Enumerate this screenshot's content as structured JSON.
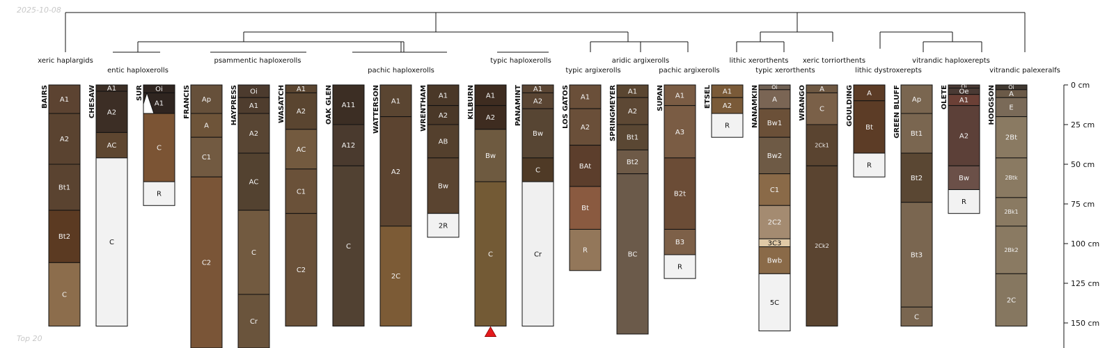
{
  "header": {
    "date": "2025-10-08"
  },
  "footer": {
    "caption": "Top 20"
  },
  "chart_data": {
    "type": "soil-profile-sketch",
    "depth_axis": {
      "unit": "cm",
      "ticks": [
        0,
        25,
        50,
        75,
        100,
        125,
        150
      ],
      "tick_labels": [
        "0 cm",
        "25 cm",
        "50 cm",
        "75 cm",
        "100 cm",
        "125 cm",
        "150 cm"
      ],
      "range": [
        0,
        160
      ]
    },
    "dendrogram_tips": [
      "xeric haplargids",
      "entic haploxerolls",
      "psammentic haploxerolls",
      "pachic haploxerolls",
      "typic haploxerolls",
      "typic argixerolls",
      "aridic argixerolls",
      "pachic argixerolls",
      "lithic xerorthents",
      "typic xerorthents",
      "xeric torriorthents",
      "lithic dystroxerepts",
      "vitrandic haploxerepts",
      "vitrandic palexeralfs"
    ],
    "profiles": [
      {
        "name": "BAIRS",
        "horizons": [
          {
            "name": "A1",
            "top": 0,
            "bottom": 18,
            "color": "#5c4331"
          },
          {
            "name": "A2",
            "top": 18,
            "bottom": 50,
            "color": "#5a4330"
          },
          {
            "name": "Bt1",
            "top": 50,
            "bottom": 79,
            "color": "#5a4330"
          },
          {
            "name": "Bt2",
            "top": 79,
            "bottom": 112,
            "color": "#5b3a22"
          },
          {
            "name": "C",
            "top": 112,
            "bottom": 152,
            "color": "#8c6d4c"
          }
        ]
      },
      {
        "name": "CHESAW",
        "horizons": [
          {
            "name": "A1",
            "top": 0,
            "bottom": 4,
            "color": "#3c2e25"
          },
          {
            "name": "A2",
            "top": 4,
            "bottom": 30,
            "color": "#3c2e25"
          },
          {
            "name": "AC",
            "top": 30,
            "bottom": 46,
            "color": "#5e4630"
          },
          {
            "name": "C",
            "top": 46,
            "bottom": 152,
            "color": "#f2f2f2"
          }
        ]
      },
      {
        "name": "SUR",
        "horizons": [
          {
            "name": "Oi",
            "top": 0,
            "bottom": 5,
            "color": "#2f2520"
          },
          {
            "name": "A1",
            "top": 5,
            "bottom": 18,
            "color": "#2f2520"
          },
          {
            "name": "C",
            "top": 18,
            "bottom": 61,
            "color": "#7b5434"
          },
          {
            "name": "R",
            "top": 61,
            "bottom": 76,
            "color": "#f2f2f2"
          }
        ]
      },
      {
        "name": "FRANCIS",
        "horizons": [
          {
            "name": "Ap",
            "top": 0,
            "bottom": 18,
            "color": "#66503a"
          },
          {
            "name": "A",
            "top": 18,
            "bottom": 33,
            "color": "#6e5439"
          },
          {
            "name": "C1",
            "top": 33,
            "bottom": 58,
            "color": "#725a41"
          },
          {
            "name": "C2",
            "top": 58,
            "bottom": 170,
            "color": "#7a5537"
          }
        ]
      },
      {
        "name": "HAYPRESS",
        "horizons": [
          {
            "name": "Oi",
            "top": 0,
            "bottom": 8,
            "color": "#4c3b2e"
          },
          {
            "name": "A1",
            "top": 8,
            "bottom": 18,
            "color": "#4f3d2e"
          },
          {
            "name": "A2",
            "top": 18,
            "bottom": 43,
            "color": "#584533"
          },
          {
            "name": "AC",
            "top": 43,
            "bottom": 79,
            "color": "#534230"
          },
          {
            "name": "C",
            "top": 79,
            "bottom": 132,
            "color": "#725a40"
          },
          {
            "name": "Cr",
            "top": 132,
            "bottom": 170,
            "color": "#6a543c"
          }
        ]
      },
      {
        "name": "WASATCH",
        "horizons": [
          {
            "name": "A1",
            "top": 0,
            "bottom": 5,
            "color": "#5a4530"
          },
          {
            "name": "A2",
            "top": 5,
            "bottom": 28,
            "color": "#5a4530"
          },
          {
            "name": "AC",
            "top": 28,
            "bottom": 53,
            "color": "#735a3f"
          },
          {
            "name": "C1",
            "top": 53,
            "bottom": 81,
            "color": "#6a5139"
          },
          {
            "name": "C2",
            "top": 81,
            "bottom": 152,
            "color": "#6a5139"
          }
        ]
      },
      {
        "name": "OAK GLEN",
        "horizons": [
          {
            "name": "A11",
            "top": 0,
            "bottom": 25,
            "color": "#3c2e24"
          },
          {
            "name": "A12",
            "top": 25,
            "bottom": 51,
            "color": "#4a3a2e"
          },
          {
            "name": "C",
            "top": 51,
            "bottom": 152,
            "color": "#514132"
          }
        ]
      },
      {
        "name": "WATTERSON",
        "horizons": [
          {
            "name": "A1",
            "top": 0,
            "bottom": 20,
            "color": "#5a4531"
          },
          {
            "name": "A2",
            "top": 20,
            "bottom": 89,
            "color": "#5c4430"
          },
          {
            "name": "2C",
            "top": 89,
            "bottom": 152,
            "color": "#7c5b36"
          }
        ]
      },
      {
        "name": "WRENTHAM",
        "horizons": [
          {
            "name": "A1",
            "top": 0,
            "bottom": 13,
            "color": "#4a3828"
          },
          {
            "name": "A2",
            "top": 13,
            "bottom": 25,
            "color": "#4a3828"
          },
          {
            "name": "AB",
            "top": 25,
            "bottom": 46,
            "color": "#54402d"
          },
          {
            "name": "Bw",
            "top": 46,
            "bottom": 81,
            "color": "#5a4430"
          },
          {
            "name": "2R",
            "top": 81,
            "bottom": 96,
            "color": "#f2f2f2"
          }
        ]
      },
      {
        "name": "KILBURN",
        "horizons": [
          {
            "name": "A1",
            "top": 0,
            "bottom": 13,
            "color": "#3e2c20"
          },
          {
            "name": "A2",
            "top": 13,
            "bottom": 28,
            "color": "#3e2c20"
          },
          {
            "name": "Bw",
            "top": 28,
            "bottom": 61,
            "color": "#6e5a40"
          },
          {
            "name": "C",
            "top": 61,
            "bottom": 152,
            "color": "#735a35"
          }
        ]
      },
      {
        "name": "PANAMINT",
        "horizons": [
          {
            "name": "A1",
            "top": 0,
            "bottom": 5,
            "color": "#5a4533"
          },
          {
            "name": "A2",
            "top": 5,
            "bottom": 15,
            "color": "#5a4533"
          },
          {
            "name": "Bw",
            "top": 15,
            "bottom": 46,
            "color": "#574533"
          },
          {
            "name": "C",
            "top": 46,
            "bottom": 61,
            "color": "#4f3a26"
          },
          {
            "name": "Cr",
            "top": 61,
            "bottom": 152,
            "color": "#f0f0f0"
          }
        ]
      },
      {
        "name": "LOS GATOS",
        "horizons": [
          {
            "name": "A1",
            "top": 0,
            "bottom": 15,
            "color": "#6a4f39"
          },
          {
            "name": "A2",
            "top": 15,
            "bottom": 38,
            "color": "#6a4f39"
          },
          {
            "name": "BAt",
            "top": 38,
            "bottom": 64,
            "color": "#5c3e2c"
          },
          {
            "name": "Bt",
            "top": 64,
            "bottom": 91,
            "color": "#8a5a40"
          },
          {
            "name": "R",
            "top": 91,
            "bottom": 117,
            "color": "#93775a"
          }
        ]
      },
      {
        "name": "SPRINGMEYER",
        "horizons": [
          {
            "name": "A1",
            "top": 0,
            "bottom": 8,
            "color": "#5a4631"
          },
          {
            "name": "A2",
            "top": 8,
            "bottom": 25,
            "color": "#5d4834"
          },
          {
            "name": "Bt1",
            "top": 25,
            "bottom": 41,
            "color": "#5a4733"
          },
          {
            "name": "Bt2",
            "top": 41,
            "bottom": 56,
            "color": "#6e5a47"
          },
          {
            "name": "BC",
            "top": 56,
            "bottom": 157,
            "color": "#6b5a4a"
          }
        ]
      },
      {
        "name": "SUPAN",
        "horizons": [
          {
            "name": "A1",
            "top": 0,
            "bottom": 13,
            "color": "#7a5c44"
          },
          {
            "name": "A3",
            "top": 13,
            "bottom": 46,
            "color": "#7a5c44"
          },
          {
            "name": "B2t",
            "top": 46,
            "bottom": 91,
            "color": "#6b4c36"
          },
          {
            "name": "B3",
            "top": 91,
            "bottom": 107,
            "color": "#7d6048"
          },
          {
            "name": "R",
            "top": 107,
            "bottom": 122,
            "color": "#f2f2f2"
          }
        ]
      },
      {
        "name": "ETSEL",
        "horizons": [
          {
            "name": "A1",
            "top": 0,
            "bottom": 8,
            "color": "#7a5a38"
          },
          {
            "name": "A2",
            "top": 8,
            "bottom": 18,
            "color": "#7a5a38"
          },
          {
            "name": "R",
            "top": 18,
            "bottom": 33,
            "color": "#f2f2f2"
          }
        ]
      },
      {
        "name": "NANAMKIN",
        "horizons": [
          {
            "name": "Oi",
            "top": 0,
            "bottom": 3,
            "color": "#6e5f52"
          },
          {
            "name": "A",
            "top": 3,
            "bottom": 15,
            "color": "#7a6554"
          },
          {
            "name": "Bw1",
            "top": 15,
            "bottom": 33,
            "color": "#6b5038"
          },
          {
            "name": "Bw2",
            "top": 33,
            "bottom": 56,
            "color": "#6e5a45"
          },
          {
            "name": "C1",
            "top": 56,
            "bottom": 76,
            "color": "#8a6a48"
          },
          {
            "name": "2C2",
            "top": 76,
            "bottom": 97,
            "color": "#a48b71"
          },
          {
            "name": "3C3",
            "top": 97,
            "bottom": 102,
            "color": "#e0c9a6"
          },
          {
            "name": "Bwb",
            "top": 102,
            "bottom": 119,
            "color": "#8a6a48"
          },
          {
            "name": "5C",
            "top": 119,
            "bottom": 155,
            "color": "#f2f2f2"
          }
        ]
      },
      {
        "name": "WRANGO",
        "horizons": [
          {
            "name": "A",
            "top": 0,
            "bottom": 5,
            "color": "#6e5842"
          },
          {
            "name": "C",
            "top": 5,
            "bottom": 25,
            "color": "#7a6048"
          },
          {
            "name": "2Ck1",
            "top": 25,
            "bottom": 51,
            "color": "#5a4430"
          },
          {
            "name": "2Ck2",
            "top": 51,
            "bottom": 152,
            "color": "#5a4430"
          }
        ]
      },
      {
        "name": "GOULDING",
        "horizons": [
          {
            "name": "A",
            "top": 0,
            "bottom": 10,
            "color": "#5c3c26"
          },
          {
            "name": "Bt",
            "top": 10,
            "bottom": 43,
            "color": "#5c3c26"
          },
          {
            "name": "R",
            "top": 43,
            "bottom": 58,
            "color": "#f2f2f2"
          }
        ]
      },
      {
        "name": "GREEN BLUFF",
        "horizons": [
          {
            "name": "Ap",
            "top": 0,
            "bottom": 18,
            "color": "#7a6650"
          },
          {
            "name": "Bt1",
            "top": 18,
            "bottom": 43,
            "color": "#7a6650"
          },
          {
            "name": "Bt2",
            "top": 43,
            "bottom": 74,
            "color": "#5a4733"
          },
          {
            "name": "Bt3",
            "top": 74,
            "bottom": 140,
            "color": "#7a6650"
          },
          {
            "name": "C",
            "top": 140,
            "bottom": 152,
            "color": "#7a6650"
          }
        ]
      },
      {
        "name": "OLETE",
        "horizons": [
          {
            "name": "Oi",
            "top": 0,
            "bottom": 2,
            "color": "#4a3a34"
          },
          {
            "name": "Oe",
            "top": 2,
            "bottom": 6,
            "color": "#4a3a34"
          },
          {
            "name": "A1",
            "top": 6,
            "bottom": 13,
            "color": "#6b4036"
          },
          {
            "name": "A2",
            "top": 13,
            "bottom": 51,
            "color": "#5c4038"
          },
          {
            "name": "Bw",
            "top": 51,
            "bottom": 66,
            "color": "#6b5048"
          },
          {
            "name": "R",
            "top": 66,
            "bottom": 81,
            "color": "#f2f2f2"
          }
        ]
      },
      {
        "name": "HODGSON",
        "horizons": [
          {
            "name": "Oi",
            "top": 0,
            "bottom": 3,
            "color": "#403830"
          },
          {
            "name": "A",
            "top": 3,
            "bottom": 8,
            "color": "#6b5a48"
          },
          {
            "name": "E",
            "top": 8,
            "bottom": 20,
            "color": "#7a6a58"
          },
          {
            "name": "2Bt",
            "top": 20,
            "bottom": 46,
            "color": "#8a7a62"
          },
          {
            "name": "2Btk",
            "top": 46,
            "bottom": 71,
            "color": "#8a7a62"
          },
          {
            "name": "2Bk1",
            "top": 71,
            "bottom": 89,
            "color": "#8a7a62"
          },
          {
            "name": "2Bk2",
            "top": 89,
            "bottom": 119,
            "color": "#8a7a62"
          },
          {
            "name": "2C",
            "top": 119,
            "bottom": 152,
            "color": "#867760"
          }
        ]
      }
    ],
    "truncation_marker": {
      "profile": "KILBURN"
    }
  }
}
